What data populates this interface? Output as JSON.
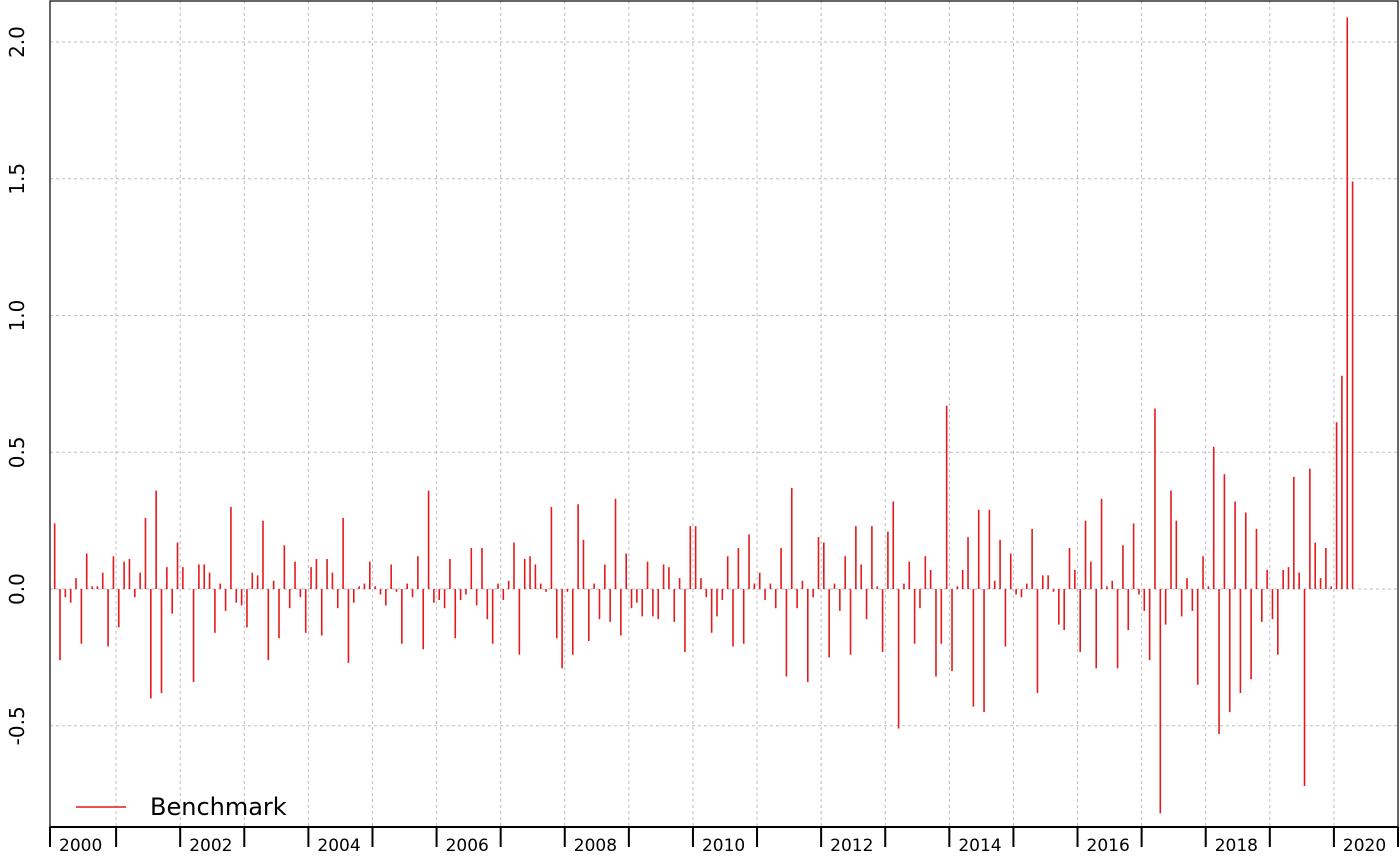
{
  "chart_data": {
    "type": "bar",
    "title": "",
    "xlabel": "",
    "ylabel": "",
    "ylim": [
      -0.87,
      2.15
    ],
    "xlim": [
      "2000-01",
      "2020-12"
    ],
    "y_ticks": [
      "-0.5",
      "0.0",
      "0.5",
      "1.0",
      "1.5",
      "2.0"
    ],
    "x_period_labels": [
      "2000",
      "2002",
      "2004",
      "2006",
      "2008",
      "2010",
      "2012",
      "2014",
      "2016",
      "2018",
      "2020"
    ],
    "grid": true,
    "legend": {
      "position": "bottom-left",
      "entries": [
        "Benchmark"
      ]
    },
    "series": [
      {
        "name": "Benchmark",
        "color": "#e41a1c",
        "start": "2000-01",
        "frequency": "monthly",
        "values": [
          0.24,
          -0.26,
          -0.03,
          -0.05,
          0.04,
          -0.2,
          0.13,
          0.01,
          0.01,
          0.06,
          -0.21,
          0.12,
          -0.14,
          0.1,
          0.11,
          -0.03,
          0.06,
          0.26,
          -0.4,
          0.36,
          -0.38,
          0.08,
          -0.09,
          0.17,
          0.08,
          0.0,
          -0.34,
          0.09,
          0.09,
          0.06,
          -0.16,
          0.02,
          -0.08,
          0.3,
          -0.05,
          -0.06,
          -0.14,
          0.06,
          0.05,
          0.25,
          -0.26,
          0.03,
          -0.18,
          0.16,
          -0.07,
          0.1,
          -0.03,
          -0.16,
          0.08,
          0.11,
          -0.17,
          0.11,
          0.06,
          -0.07,
          0.26,
          -0.27,
          -0.05,
          0.01,
          0.02,
          0.1,
          0.01,
          -0.02,
          -0.06,
          0.09,
          -0.01,
          -0.2,
          0.02,
          -0.03,
          0.12,
          -0.22,
          0.36,
          -0.05,
          -0.04,
          -0.07,
          0.11,
          -0.18,
          -0.04,
          -0.02,
          0.15,
          -0.06,
          0.15,
          -0.11,
          -0.2,
          0.02,
          -0.04,
          0.03,
          0.17,
          -0.24,
          0.11,
          0.12,
          0.09,
          0.02,
          -0.01,
          0.3,
          -0.18,
          -0.29,
          -0.01,
          -0.24,
          0.31,
          0.18,
          -0.19,
          0.02,
          -0.11,
          0.09,
          -0.12,
          0.33,
          -0.17,
          0.13,
          -0.07,
          -0.05,
          -0.1,
          0.1,
          -0.1,
          -0.11,
          0.09,
          0.08,
          -0.12,
          0.04,
          -0.23,
          0.23,
          0.23,
          0.04,
          -0.03,
          -0.16,
          -0.1,
          -0.04,
          0.12,
          -0.21,
          0.15,
          -0.2,
          0.2,
          0.02,
          0.06,
          -0.04,
          0.02,
          -0.07,
          0.15,
          -0.32,
          0.37,
          -0.07,
          0.03,
          -0.34,
          -0.03,
          0.19,
          0.17,
          -0.25,
          0.02,
          -0.08,
          0.12,
          -0.24,
          0.23,
          0.09,
          -0.11,
          0.23,
          0.01,
          -0.23,
          0.21,
          0.32,
          -0.51,
          0.02,
          0.1,
          -0.2,
          -0.07,
          0.12,
          0.07,
          -0.32,
          -0.2,
          0.67,
          -0.3,
          0.01,
          0.07,
          0.19,
          -0.43,
          0.29,
          -0.45,
          0.29,
          0.03,
          0.18,
          -0.21,
          0.13,
          -0.02,
          -0.03,
          0.02,
          0.22,
          -0.38,
          0.05,
          0.05,
          -0.01,
          -0.13,
          -0.15,
          0.15,
          0.07,
          -0.23,
          0.25,
          0.1,
          -0.29,
          0.33,
          0.01,
          0.03,
          -0.29,
          0.16,
          -0.15,
          0.24,
          -0.02,
          -0.08,
          -0.26,
          0.66,
          -0.82,
          -0.13,
          0.36,
          0.25,
          -0.1,
          0.04,
          -0.08,
          -0.35,
          0.12,
          0.01,
          0.52,
          -0.53,
          0.42,
          -0.45,
          0.32,
          -0.38,
          0.28,
          -0.33,
          0.22,
          -0.12,
          0.07,
          -0.11,
          -0.24,
          0.07,
          0.08,
          0.41,
          0.06,
          -0.72,
          0.44,
          0.17,
          0.04,
          0.15,
          0.01,
          0.61,
          0.78,
          2.09,
          1.49
        ]
      }
    ]
  }
}
